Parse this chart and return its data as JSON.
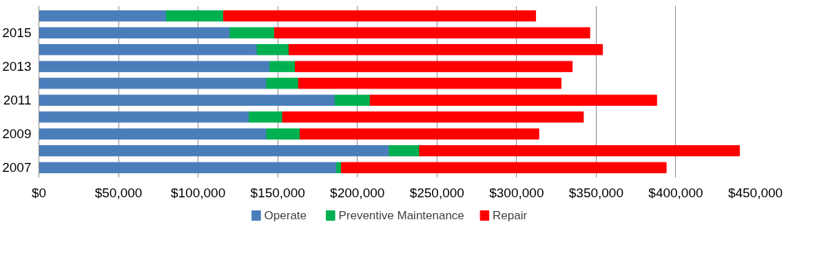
{
  "chart_data": {
    "type": "bar",
    "orientation": "horizontal",
    "stacked": true,
    "categories": [
      null,
      "2015",
      null,
      "2013",
      null,
      "2011",
      null,
      "2009",
      null,
      "2007"
    ],
    "series": [
      {
        "name": "Operate",
        "color": "#4a7ebb",
        "values": [
          80000,
          120000,
          137000,
          145000,
          143000,
          186000,
          132000,
          143000,
          220000,
          187000
        ]
      },
      {
        "name": "Preventive Maintenance",
        "color": "#00b050",
        "values": [
          36000,
          28000,
          20000,
          16000,
          20000,
          22000,
          21000,
          21000,
          19000,
          3000
        ]
      },
      {
        "name": "Repair",
        "color": "#ff0000",
        "values": [
          196000,
          198000,
          197000,
          174000,
          165000,
          180000,
          189000,
          150000,
          201000,
          204000
        ]
      }
    ],
    "xlim": [
      0,
      450000
    ],
    "xticks": [
      {
        "value": 0,
        "label": "$0"
      },
      {
        "value": 50000,
        "label": "$50,000"
      },
      {
        "value": 100000,
        "label": "$100,000"
      },
      {
        "value": 150000,
        "label": "$150,000"
      },
      {
        "value": 200000,
        "label": "$200,000"
      },
      {
        "value": 250000,
        "label": "$250,000"
      },
      {
        "value": 300000,
        "label": "$300,000"
      },
      {
        "value": 350000,
        "label": "$350,000"
      },
      {
        "value": 400000,
        "label": "$400,000"
      },
      {
        "value": 450000,
        "label": "$450,000"
      }
    ],
    "grid": "x",
    "legend": "bottom"
  }
}
